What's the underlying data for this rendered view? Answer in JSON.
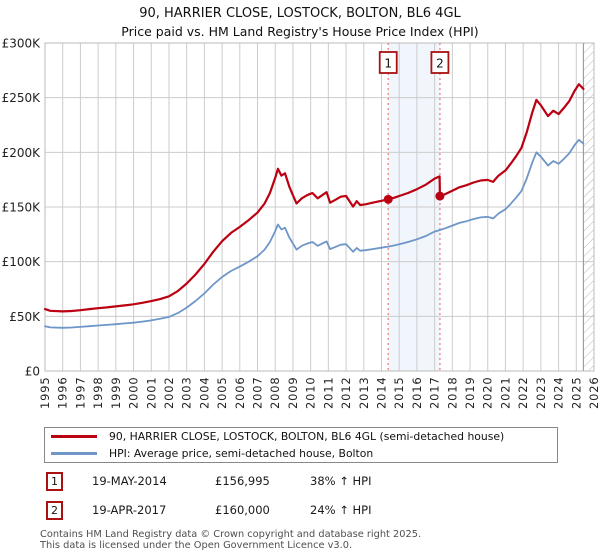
{
  "title": "90, HARRIER CLOSE, LOSTOCK, BOLTON, BL6 4GL",
  "subtitle": "Price paid vs. HM Land Registry's House Price Index (HPI)",
  "chart_data": {
    "type": "line",
    "title": "90, HARRIER CLOSE, LOSTOCK, BOLTON, BL6 4GL — Price paid vs. HPI",
    "x_range": [
      1995,
      2026
    ],
    "y_range": [
      0,
      300
    ],
    "y_unit": "GBP thousands",
    "grid": true,
    "grid_color": "#cccccc",
    "border_color": "#bbbbbb",
    "x_tick_years": [
      1995,
      1996,
      1997,
      1998,
      1999,
      2000,
      2001,
      2002,
      2003,
      2004,
      2005,
      2006,
      2007,
      2008,
      2009,
      2010,
      2011,
      2012,
      2013,
      2014,
      2015,
      2016,
      2017,
      2018,
      2019,
      2020,
      2021,
      2022,
      2023,
      2024,
      2025,
      2026
    ],
    "y_ticks": [
      {
        "label": "£300K",
        "value": 300
      },
      {
        "label": "£250K",
        "value": 250
      },
      {
        "label": "£200K",
        "value": 200
      },
      {
        "label": "£150K",
        "value": 150
      },
      {
        "label": "£100K",
        "value": 100
      },
      {
        "label": "£50K",
        "value": 50
      },
      {
        "label": "£0",
        "value": 0
      }
    ],
    "highlight_band": {
      "from_year": 2014.38,
      "to_year": 2017.3,
      "color": "#f1f5fc"
    },
    "future_hatch": {
      "from_year": 2025.4,
      "to_year": 2026,
      "line_color": "#b8b8b8",
      "edge_color": "#909090"
    },
    "marker_line_color": "#ee8888",
    "sale_markers": [
      {
        "num": "1",
        "year": 2014.38,
        "price_gbp": 156995
      },
      {
        "num": "2",
        "year": 2017.3,
        "price_gbp": 160000
      }
    ],
    "series": [
      {
        "name": "90, HARRIER CLOSE, LOSTOCK, BOLTON, BL6 4GL (semi-detached house)",
        "color": "#bb0011",
        "points": [
          [
            1995.0,
            56.6
          ],
          [
            1995.3,
            55.1
          ],
          [
            1996.0,
            54.5
          ],
          [
            1996.5,
            54.9
          ],
          [
            1997.0,
            55.6
          ],
          [
            1997.5,
            56.6
          ],
          [
            1998.0,
            57.4
          ],
          [
            1998.5,
            58.2
          ],
          [
            1999.0,
            59.1
          ],
          [
            1999.5,
            60.0
          ],
          [
            2000.0,
            61.0
          ],
          [
            2000.5,
            62.4
          ],
          [
            2001.0,
            63.9
          ],
          [
            2001.5,
            65.8
          ],
          [
            2002.0,
            68.3
          ],
          [
            2002.5,
            73.1
          ],
          [
            2003.0,
            80.0
          ],
          [
            2003.5,
            88.3
          ],
          [
            2004.0,
            98.0
          ],
          [
            2004.5,
            109.0
          ],
          [
            2005.0,
            118.7
          ],
          [
            2005.5,
            126.3
          ],
          [
            2006.0,
            131.8
          ],
          [
            2006.5,
            138.0
          ],
          [
            2007.0,
            144.9
          ],
          [
            2007.4,
            153.2
          ],
          [
            2007.7,
            162.8
          ],
          [
            2008.0,
            176.6
          ],
          [
            2008.15,
            184.9
          ],
          [
            2008.35,
            178.7
          ],
          [
            2008.55,
            180.8
          ],
          [
            2008.8,
            168.4
          ],
          [
            2009.2,
            153.2
          ],
          [
            2009.5,
            158.0
          ],
          [
            2009.8,
            160.8
          ],
          [
            2010.1,
            162.8
          ],
          [
            2010.4,
            158.0
          ],
          [
            2010.65,
            160.8
          ],
          [
            2010.9,
            163.5
          ],
          [
            2011.1,
            153.9
          ],
          [
            2011.4,
            156.6
          ],
          [
            2011.7,
            159.4
          ],
          [
            2012.0,
            160.1
          ],
          [
            2012.4,
            150.4
          ],
          [
            2012.6,
            155.3
          ],
          [
            2012.8,
            151.8
          ],
          [
            2013.1,
            152.5
          ],
          [
            2013.5,
            153.9
          ],
          [
            2014.0,
            155.7
          ],
          [
            2014.38,
            157.0
          ],
          [
            2014.7,
            158.4
          ],
          [
            2015.0,
            160.1
          ],
          [
            2015.5,
            162.8
          ],
          [
            2016.0,
            166.3
          ],
          [
            2016.5,
            170.4
          ],
          [
            2017.0,
            176.0
          ],
          [
            2017.28,
            178.0
          ],
          [
            2017.3,
            160.0
          ],
          [
            2017.6,
            161.8
          ],
          [
            2018.0,
            164.9
          ],
          [
            2018.4,
            168.0
          ],
          [
            2018.8,
            169.9
          ],
          [
            2019.2,
            172.4
          ],
          [
            2019.6,
            174.2
          ],
          [
            2020.0,
            174.8
          ],
          [
            2020.3,
            173.0
          ],
          [
            2020.6,
            178.6
          ],
          [
            2021.0,
            183.5
          ],
          [
            2021.3,
            189.7
          ],
          [
            2021.6,
            196.5
          ],
          [
            2021.9,
            204.0
          ],
          [
            2022.2,
            218.2
          ],
          [
            2022.5,
            235.6
          ],
          [
            2022.75,
            248.0
          ],
          [
            2023.0,
            243.0
          ],
          [
            2023.4,
            233.1
          ],
          [
            2023.7,
            238.1
          ],
          [
            2024.0,
            235.0
          ],
          [
            2024.3,
            240.6
          ],
          [
            2024.6,
            246.8
          ],
          [
            2024.9,
            256.1
          ],
          [
            2025.15,
            262.3
          ],
          [
            2025.4,
            258.0
          ]
        ]
      },
      {
        "name": "HPI: Average price, semi-detached house, Bolton",
        "color": "#6e96c8",
        "points": [
          [
            1995.0,
            41.0
          ],
          [
            1995.3,
            39.9
          ],
          [
            1996.0,
            39.5
          ],
          [
            1996.5,
            39.8
          ],
          [
            1997.0,
            40.3
          ],
          [
            1997.5,
            41.0
          ],
          [
            1998.0,
            41.6
          ],
          [
            1998.5,
            42.2
          ],
          [
            1999.0,
            42.8
          ],
          [
            1999.5,
            43.5
          ],
          [
            2000.0,
            44.2
          ],
          [
            2000.5,
            45.2
          ],
          [
            2001.0,
            46.3
          ],
          [
            2001.5,
            47.7
          ],
          [
            2002.0,
            49.5
          ],
          [
            2002.5,
            53.0
          ],
          [
            2003.0,
            58.0
          ],
          [
            2003.5,
            64.0
          ],
          [
            2004.0,
            71.0
          ],
          [
            2004.5,
            79.0
          ],
          [
            2005.0,
            86.0
          ],
          [
            2005.5,
            91.5
          ],
          [
            2006.0,
            95.5
          ],
          [
            2006.5,
            100.0
          ],
          [
            2007.0,
            105.0
          ],
          [
            2007.4,
            111.0
          ],
          [
            2007.7,
            118.0
          ],
          [
            2008.0,
            128.0
          ],
          [
            2008.15,
            134.0
          ],
          [
            2008.35,
            129.5
          ],
          [
            2008.55,
            131.0
          ],
          [
            2008.8,
            122.0
          ],
          [
            2009.2,
            111.0
          ],
          [
            2009.5,
            114.5
          ],
          [
            2009.8,
            116.5
          ],
          [
            2010.1,
            118.0
          ],
          [
            2010.4,
            114.5
          ],
          [
            2010.65,
            116.5
          ],
          [
            2010.9,
            118.5
          ],
          [
            2011.1,
            111.5
          ],
          [
            2011.4,
            113.5
          ],
          [
            2011.7,
            115.5
          ],
          [
            2012.0,
            116.0
          ],
          [
            2012.4,
            109.0
          ],
          [
            2012.6,
            112.5
          ],
          [
            2012.8,
            110.0
          ],
          [
            2013.1,
            110.5
          ],
          [
            2013.5,
            111.5
          ],
          [
            2014.0,
            112.8
          ],
          [
            2014.38,
            113.8
          ],
          [
            2014.7,
            114.8
          ],
          [
            2015.0,
            116.0
          ],
          [
            2015.5,
            118.0
          ],
          [
            2016.0,
            120.5
          ],
          [
            2016.5,
            123.5
          ],
          [
            2017.0,
            127.5
          ],
          [
            2017.3,
            129.0
          ],
          [
            2017.6,
            130.5
          ],
          [
            2018.0,
            133.0
          ],
          [
            2018.4,
            135.5
          ],
          [
            2018.8,
            137.0
          ],
          [
            2019.2,
            139.0
          ],
          [
            2019.6,
            140.5
          ],
          [
            2020.0,
            141.0
          ],
          [
            2020.3,
            139.5
          ],
          [
            2020.6,
            144.0
          ],
          [
            2021.0,
            148.0
          ],
          [
            2021.3,
            153.0
          ],
          [
            2021.6,
            158.5
          ],
          [
            2021.9,
            164.5
          ],
          [
            2022.2,
            176.0
          ],
          [
            2022.5,
            190.0
          ],
          [
            2022.75,
            200.0
          ],
          [
            2023.0,
            196.0
          ],
          [
            2023.4,
            188.0
          ],
          [
            2023.7,
            192.0
          ],
          [
            2024.0,
            189.5
          ],
          [
            2024.3,
            194.0
          ],
          [
            2024.6,
            199.0
          ],
          [
            2024.9,
            206.5
          ],
          [
            2025.15,
            211.5
          ],
          [
            2025.4,
            208.0
          ]
        ]
      }
    ],
    "legend_position": "bottom"
  },
  "legend": {
    "items": [
      {
        "label": "90, HARRIER CLOSE, LOSTOCK, BOLTON, BL6 4GL (semi-detached house)",
        "color": "#bb0011"
      },
      {
        "label": "HPI: Average price, semi-detached house, Bolton",
        "color": "#6e96c8"
      }
    ]
  },
  "annotations": [
    {
      "num": "1",
      "date": "19-MAY-2014",
      "price": "£156,995",
      "hpi_change": "38% ↑ HPI"
    },
    {
      "num": "2",
      "date": "19-APR-2017",
      "price": "£160,000",
      "hpi_change": "24% ↑ HPI"
    }
  ],
  "footer": {
    "line1": "Contains HM Land Registry data © Crown copyright and database right 2025.",
    "line2": "This data is licensed under the Open Government Licence v3.0."
  }
}
